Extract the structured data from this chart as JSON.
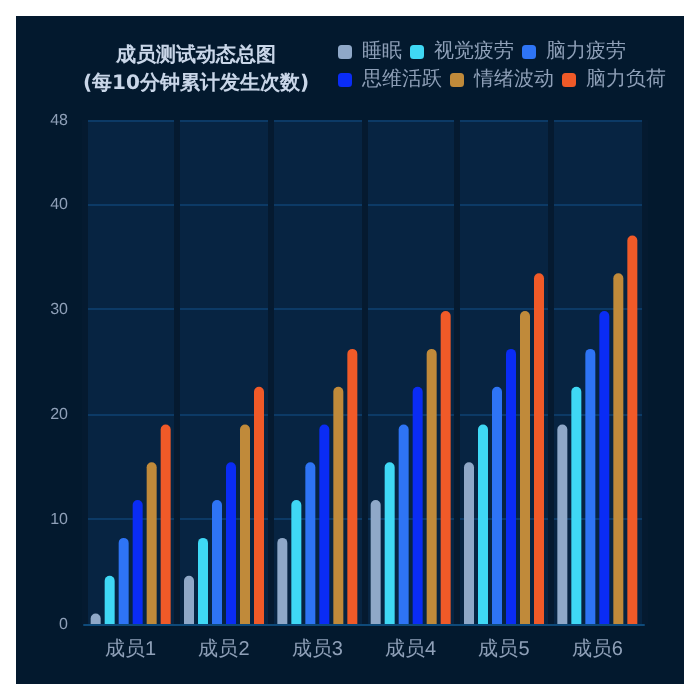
{
  "chart_data": {
    "type": "bar",
    "title": "成员测试动态总图",
    "subtitle": "(每10分钟累计发生次数)",
    "categories": [
      "成员1",
      "成员2",
      "成员3",
      "成员4",
      "成员5",
      "成员6"
    ],
    "series": [
      {
        "name": "睡眠",
        "color": "#8fa8c8",
        "values": [
          1,
          4.6,
          8.2,
          11.8,
          15.4,
          19
        ]
      },
      {
        "name": "视觉疲劳",
        "color": "#3fd8f5",
        "values": [
          4.6,
          8.2,
          11.8,
          15.4,
          19,
          22.6
        ]
      },
      {
        "name": "脑力疲劳",
        "color": "#2e74f5",
        "values": [
          8.2,
          11.8,
          15.4,
          19,
          22.6,
          26.2
        ]
      },
      {
        "name": "思维活跃",
        "color": "#0a2cf5",
        "values": [
          11.8,
          15.4,
          19,
          22.6,
          26.2,
          29.8
        ]
      },
      {
        "name": "情绪波动",
        "color": "#c08a3a",
        "values": [
          15.4,
          19,
          22.6,
          26.2,
          29.8,
          33.4
        ]
      },
      {
        "name": "脑力负荷",
        "color": "#f05a28",
        "values": [
          19,
          22.6,
          26.2,
          29.8,
          33.4,
          37
        ]
      }
    ],
    "ylim": [
      0,
      48
    ],
    "yticks": [
      0,
      10,
      20,
      30,
      40,
      48
    ],
    "grid": true,
    "legend": "top right"
  }
}
